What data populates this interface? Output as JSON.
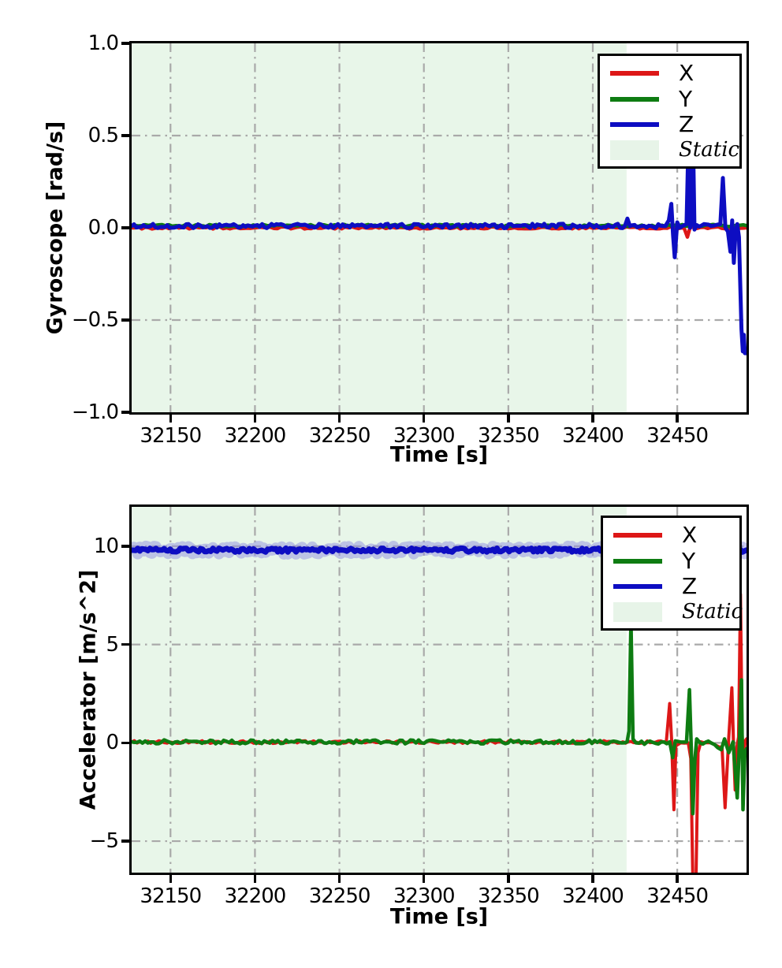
{
  "figure": {
    "background": "#ffffff",
    "description": "Two stacked IMU time-series plots with a shaded static interval"
  },
  "colors": {
    "x_line": "#dd1717",
    "y_line": "#0e7c12",
    "z_line": "#0d0dc2",
    "z_halo": "#8f8fe0",
    "static_fill": "#e8f6e9",
    "grid": "#a9a9a9",
    "spine": "#000000"
  },
  "chart_data": [
    {
      "type": "line",
      "title": "",
      "xlabel": "Time [s]",
      "ylabel": "Gyroscope [rad/s]",
      "xlim": [
        32127,
        32491
      ],
      "ylim": [
        -1.0,
        1.0
      ],
      "xticks": {
        "values": [
          32150,
          32200,
          32250,
          32300,
          32350,
          32400,
          32450
        ],
        "labels": [
          "32150",
          "32200",
          "32250",
          "32300",
          "32350",
          "32400",
          "32450"
        ]
      },
      "yticks": {
        "values": [
          1.0,
          0.5,
          0.0,
          -0.5,
          -1.0
        ],
        "labels": [
          "1.0",
          "0.5",
          "0.0",
          "−0.5",
          "−1.0"
        ]
      },
      "grid": {
        "on": true,
        "style": "dash-dot",
        "color": "#a9a9a9",
        "x_values": [
          32150,
          32200,
          32250,
          32300,
          32350,
          32400,
          32450
        ],
        "y_values": [
          0.5,
          0.0,
          -0.5
        ]
      },
      "static_region": {
        "label": "Static",
        "x_start": 32127,
        "x_end": 32420,
        "color": "#e8f6e9"
      },
      "legend": {
        "position": "upper right",
        "entries": [
          {
            "label": "X",
            "color": "#dd1717",
            "kind": "line"
          },
          {
            "label": "Y",
            "color": "#0e7c12",
            "kind": "line"
          },
          {
            "label": "Z",
            "color": "#0d0dc2",
            "kind": "line"
          },
          {
            "label": "Static",
            "color": "#e7f4e8",
            "kind": "patch"
          }
        ]
      },
      "series": [
        {
          "name": "X",
          "color": "#dd1717",
          "width": 4.5,
          "noise_amp": 0.006,
          "noise_step": 2.0,
          "points": [
            [
              32127,
              0
            ],
            [
              32454,
              0
            ],
            [
              32456,
              -0.05
            ],
            [
              32457.5,
              0
            ],
            [
              32491,
              0
            ]
          ]
        },
        {
          "name": "Y",
          "color": "#0e7c12",
          "width": 4.5,
          "noise_amp": 0.006,
          "noise_step": 2.0,
          "points": [
            [
              32127,
              0.012
            ],
            [
              32491,
              0.012
            ]
          ]
        },
        {
          "name": "Z",
          "color": "#0d0dc2",
          "width": 5,
          "noise_amp": 0.012,
          "noise_step": 1.4,
          "points": [
            [
              32127,
              0.01
            ],
            [
              32419,
              0.01
            ],
            [
              32420.5,
              0.05
            ],
            [
              32422,
              0.01
            ],
            [
              32443,
              0.01
            ],
            [
              32445,
              0.04
            ],
            [
              32446.5,
              0.13
            ],
            [
              32447.5,
              -0.04
            ],
            [
              32448.5,
              -0.16
            ],
            [
              32450,
              0.03
            ],
            [
              32451.5,
              0.0
            ],
            [
              32455.5,
              0.02
            ],
            [
              32456.8,
              0.55
            ],
            [
              32457.6,
              0.0
            ],
            [
              32458.4,
              0.03
            ],
            [
              32459.2,
              0.55
            ],
            [
              32460.2,
              -0.01
            ],
            [
              32461.5,
              0.015
            ],
            [
              32470,
              0.01
            ],
            [
              32475.5,
              0.02
            ],
            [
              32477,
              0.27
            ],
            [
              32478.5,
              0.0
            ],
            [
              32480,
              -0.02
            ],
            [
              32481.5,
              -0.13
            ],
            [
              32482.5,
              0.04
            ],
            [
              32483.5,
              -0.19
            ],
            [
              32484.5,
              -0.02
            ],
            [
              32485.5,
              0.02
            ],
            [
              32486.5,
              -0.05
            ],
            [
              32488,
              -0.55
            ],
            [
              32488.8,
              -0.67
            ],
            [
              32489.4,
              -0.58
            ],
            [
              32490,
              -0.68
            ],
            [
              32491,
              -0.68
            ]
          ]
        }
      ]
    },
    {
      "type": "line",
      "title": "",
      "xlabel": "Time [s]",
      "ylabel": "Accelerator [m/s^2]",
      "xlim": [
        32127,
        32491
      ],
      "ylim": [
        -6.6,
        12.0
      ],
      "xticks": {
        "values": [
          32150,
          32200,
          32250,
          32300,
          32350,
          32400,
          32450
        ],
        "labels": [
          "32150",
          "32200",
          "32250",
          "32300",
          "32350",
          "32400",
          "32450"
        ]
      },
      "yticks": {
        "values": [
          10,
          5,
          0,
          -5
        ],
        "labels": [
          "10",
          "5",
          "0",
          "−5"
        ]
      },
      "grid": {
        "on": true,
        "style": "dash-dot",
        "color": "#a9a9a9",
        "x_values": [
          32150,
          32200,
          32250,
          32300,
          32350,
          32400,
          32450
        ],
        "y_values": [
          10,
          5,
          0,
          -5
        ]
      },
      "static_region": {
        "label": "Static",
        "x_start": 32127,
        "x_end": 32420,
        "color": "#e8f6e9"
      },
      "legend": {
        "position": "upper right",
        "entries": [
          {
            "label": "X",
            "color": "#dd1717",
            "kind": "line"
          },
          {
            "label": "Y",
            "color": "#0e7c12",
            "kind": "line"
          },
          {
            "label": "Z",
            "color": "#0d0dc2",
            "kind": "line"
          },
          {
            "label": "Static",
            "color": "#e7f4e8",
            "kind": "patch"
          }
        ]
      },
      "series": [
        {
          "name": "X",
          "color": "#dd1717",
          "width": 4,
          "noise_amp": 0.07,
          "noise_step": 1.6,
          "points": [
            [
              32127,
              0.04
            ],
            [
              32443.5,
              0.04
            ],
            [
              32445.5,
              2.0
            ],
            [
              32446.6,
              0.2
            ],
            [
              32448,
              -3.4
            ],
            [
              32449.2,
              -0.15
            ],
            [
              32452,
              0.0
            ],
            [
              32456.5,
              0.0
            ],
            [
              32458,
              -0.8
            ],
            [
              32459.3,
              -7.5
            ],
            [
              32461,
              -7.5
            ],
            [
              32462.3,
              -0.5
            ],
            [
              32464,
              0.05
            ],
            [
              32470,
              0.0
            ],
            [
              32476.5,
              -0.2
            ],
            [
              32478.3,
              -3.3
            ],
            [
              32480.5,
              0.3
            ],
            [
              32482.3,
              2.8
            ],
            [
              32483.5,
              -0.6
            ],
            [
              32484.3,
              -2.4
            ],
            [
              32485.3,
              -0.2
            ],
            [
              32486.3,
              0.3
            ],
            [
              32487.4,
              7.56
            ],
            [
              32488.4,
              0.5
            ],
            [
              32489.2,
              -1.0
            ],
            [
              32490.2,
              0.1
            ],
            [
              32491,
              0.2
            ]
          ]
        },
        {
          "name": "Y",
          "color": "#0e7c12",
          "width": 4.5,
          "noise_amp": 0.1,
          "noise_step": 1.6,
          "points": [
            [
              32127,
              0.05
            ],
            [
              32420.3,
              0.05
            ],
            [
              32421.4,
              0.6
            ],
            [
              32422.6,
              6.2
            ],
            [
              32423.8,
              0.2
            ],
            [
              32425.5,
              0.0
            ],
            [
              32445.5,
              0.05
            ],
            [
              32447.3,
              -0.75
            ],
            [
              32448.8,
              0.1
            ],
            [
              32455.5,
              0.05
            ],
            [
              32457.2,
              2.7
            ],
            [
              32458.2,
              0.0
            ],
            [
              32459.2,
              -3.6
            ],
            [
              32460.4,
              -0.9
            ],
            [
              32461.5,
              0.2
            ],
            [
              32463.5,
              0.0
            ],
            [
              32470,
              0.0
            ],
            [
              32476,
              -0.35
            ],
            [
              32478,
              0.2
            ],
            [
              32480.5,
              -0.5
            ],
            [
              32483,
              0.05
            ],
            [
              32485.5,
              -2.8
            ],
            [
              32486.7,
              -0.2
            ],
            [
              32488,
              3.2
            ],
            [
              32488.9,
              -3.4
            ],
            [
              32490,
              -0.5
            ],
            [
              32491,
              -0.3
            ]
          ]
        },
        {
          "name": "Z",
          "color": "#0d0dc2",
          "width": 7,
          "noise_amp": 0.1,
          "noise_step": 1.2,
          "halo": {
            "color": "#8f8fe0",
            "width": 14,
            "opacity": 0.5,
            "amp": 0.2
          },
          "points": [
            [
              32127,
              9.8
            ],
            [
              32491,
              9.8
            ]
          ]
        }
      ]
    }
  ]
}
